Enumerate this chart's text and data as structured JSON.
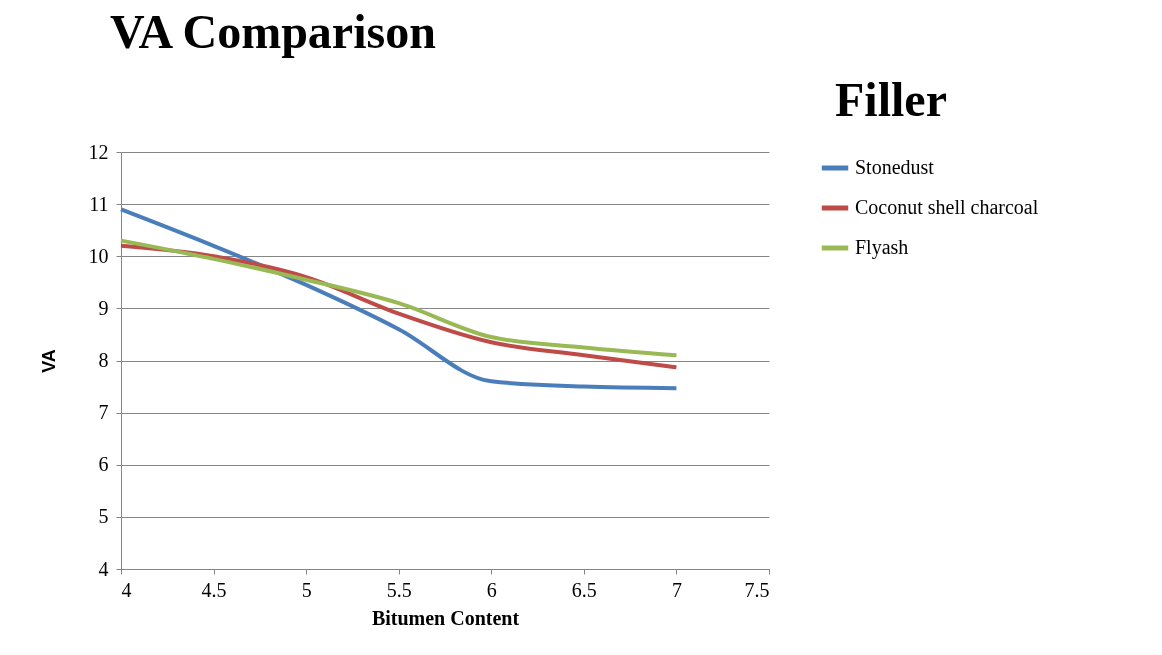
{
  "chart_data": {
    "type": "line",
    "title": "VA Comparison",
    "annotations": [
      "Filler"
    ],
    "xlabel": "Bitumen Content",
    "ylabel": "VA",
    "x": [
      4,
      4.5,
      5,
      5.5,
      6,
      6.5,
      7
    ],
    "xlim": [
      4,
      7.5
    ],
    "xticks": [
      4,
      4.5,
      5,
      5.5,
      6,
      6.5,
      7,
      7.5
    ],
    "ylim": [
      4,
      12
    ],
    "yticks": [
      4,
      5,
      6,
      7,
      8,
      9,
      10,
      11,
      12
    ],
    "grid": "y",
    "legend": "right",
    "marker": "none",
    "series": [
      {
        "name": "Stonedust",
        "color": "#4a7ebb",
        "values": [
          10.9,
          10.2,
          9.45,
          8.6,
          7.6,
          7.5,
          7.47
        ]
      },
      {
        "name": "Coconut shell charcoal",
        "color": "#be4b48",
        "values": [
          10.2,
          10.0,
          9.6,
          8.9,
          8.35,
          8.1,
          7.87
        ]
      },
      {
        "name": "Flyash",
        "color": "#98b954",
        "values": [
          10.3,
          9.95,
          9.55,
          9.1,
          8.45,
          8.25,
          8.1
        ]
      }
    ]
  }
}
